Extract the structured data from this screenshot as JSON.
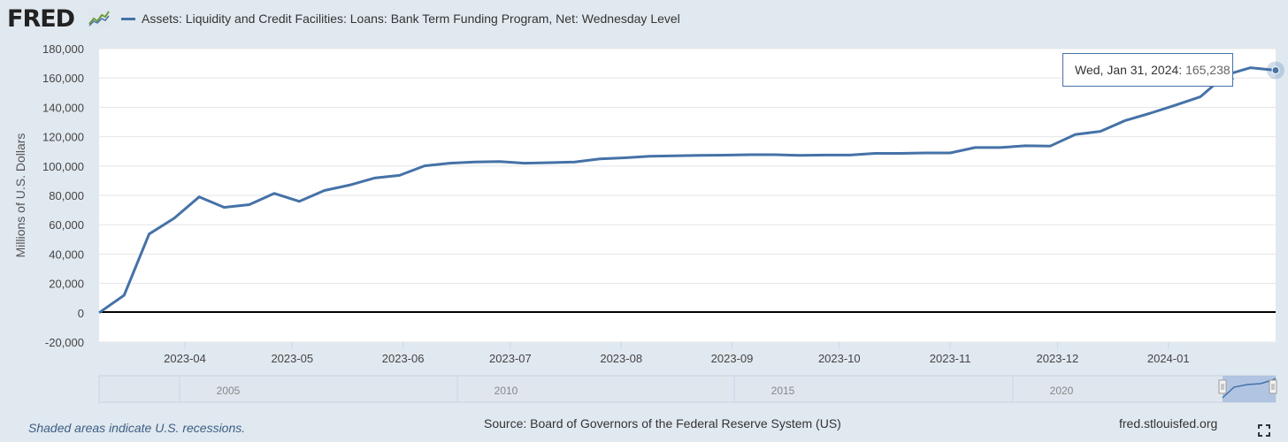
{
  "header": {
    "logo_text": "FRED",
    "logo_icon": "trend-line-icon"
  },
  "chart_data": {
    "type": "line",
    "title": "",
    "ylabel": "Millions of U.S. Dollars",
    "xlabel": "",
    "ylim": [
      -20000,
      180000
    ],
    "xlim": [
      "2023-03-08",
      "2024-01-31"
    ],
    "y_ticks": [
      "180,000",
      "160,000",
      "140,000",
      "120,000",
      "100,000",
      "80,000",
      "60,000",
      "40,000",
      "20,000",
      "0",
      "-20,000"
    ],
    "x_ticks": [
      "2023-04",
      "2023-05",
      "2023-06",
      "2023-07",
      "2023-08",
      "2023-09",
      "2023-10",
      "2023-11",
      "2023-12",
      "2024-01"
    ],
    "grid": true,
    "zero_line": true,
    "series": [
      {
        "name": "Assets: Liquidity and Credit Facilities: Loans: Bank Term Funding Program, Net: Wednesday Level",
        "color": "#4572a7",
        "x": [
          "2023-03-08",
          "2023-03-15",
          "2023-03-22",
          "2023-03-29",
          "2023-04-05",
          "2023-04-12",
          "2023-04-19",
          "2023-04-26",
          "2023-05-03",
          "2023-05-10",
          "2023-05-17",
          "2023-05-24",
          "2023-05-31",
          "2023-06-07",
          "2023-06-14",
          "2023-06-21",
          "2023-06-28",
          "2023-07-05",
          "2023-07-12",
          "2023-07-19",
          "2023-07-26",
          "2023-08-02",
          "2023-08-09",
          "2023-08-16",
          "2023-08-23",
          "2023-08-30",
          "2023-09-06",
          "2023-09-13",
          "2023-09-20",
          "2023-09-27",
          "2023-10-04",
          "2023-10-11",
          "2023-10-18",
          "2023-10-25",
          "2023-11-01",
          "2023-11-08",
          "2023-11-15",
          "2023-11-22",
          "2023-11-29",
          "2023-12-06",
          "2023-12-13",
          "2023-12-20",
          "2023-12-27",
          "2024-01-03",
          "2024-01-10",
          "2024-01-17",
          "2024-01-24",
          "2024-01-31"
        ],
        "values": [
          0,
          11900,
          53700,
          64400,
          79000,
          71800,
          73700,
          81300,
          75900,
          83300,
          87000,
          91800,
          93600,
          100100,
          101900,
          102700,
          103100,
          101900,
          102300,
          102700,
          104900,
          105600,
          106700,
          107000,
          107200,
          107400,
          107700,
          107700,
          107300,
          107500,
          107500,
          108600,
          108600,
          108900,
          108900,
          112600,
          112600,
          113800,
          113600,
          121500,
          123600,
          131000,
          136000,
          141500,
          147200,
          162000,
          167000,
          165238
        ]
      }
    ]
  },
  "navigator": {
    "labels": [
      "2005",
      "2010",
      "2015",
      "2020"
    ]
  },
  "tooltip": {
    "label": "Wed, Jan 31, 2024:",
    "value": "165,238"
  },
  "footer": {
    "note": "Shaded areas indicate U.S. recessions.",
    "source": "Source: Board of Governors of the Federal Reserve System (US)",
    "url": "fred.stlouisfed.org",
    "fullscreen_icon": "fullscreen-icon"
  }
}
